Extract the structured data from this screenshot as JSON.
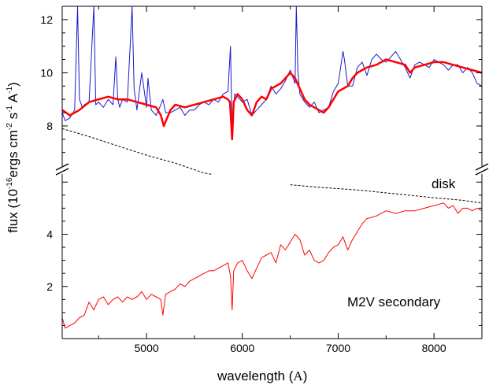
{
  "chart_data": {
    "type": "line",
    "xlabel": "wavelength",
    "xlabel_unit": "A",
    "ylabel": {
      "prefix": "flux (10",
      "exp1": "-16",
      "mid": "ergs cm",
      "exp2": "-2",
      "mid2": " s",
      "exp3": "-1",
      "mid3": " A",
      "exp4": "-1",
      "suffix": ")"
    },
    "xlim": [
      4120,
      8500
    ],
    "x_ticks": [
      5000,
      6000,
      7000,
      8000
    ],
    "upper_panel": {
      "ylim": [
        6.4,
        12.5
      ],
      "y_ticks": [
        8,
        10,
        12
      ]
    },
    "lower_panel": {
      "ylim": [
        0,
        6.4
      ],
      "y_ticks": [
        2,
        4
      ]
    },
    "annotations": {
      "disk": "disk",
      "secondary": "M2V secondary"
    },
    "colors": {
      "observed": "#1a1acc",
      "model": "#ff0000",
      "secondary": "#ff0000",
      "disk": "#000000"
    },
    "series": [
      {
        "panel": "upper",
        "style": "thin",
        "x": [
          4120,
          4150,
          4200,
          4250,
          4280,
          4300,
          4330,
          4350,
          4400,
          4450,
          4470,
          4500,
          4550,
          4600,
          4650,
          4680,
          4700,
          4720,
          4750,
          4800,
          4850,
          4870,
          4900,
          4950,
          5000,
          5015,
          5050,
          5100,
          5150,
          5170,
          5200,
          5250,
          5300,
          5350,
          5400,
          5450,
          5500,
          5550,
          5600,
          5650,
          5700,
          5750,
          5800,
          5850,
          5876,
          5893,
          5920,
          5950,
          6000,
          6050,
          6100,
          6150,
          6200,
          6250,
          6300,
          6350,
          6400,
          6450,
          6500,
          6550,
          6563,
          6580,
          6600,
          6650,
          6700,
          6750,
          6800,
          6850,
          6900,
          6950,
          7000,
          7050,
          7065,
          7100,
          7150,
          7200,
          7250,
          7300,
          7350,
          7400,
          7450,
          7500,
          7550,
          7600,
          7650,
          7700,
          7750,
          7800,
          7850,
          7900,
          7950,
          8000,
          8050,
          8100,
          8150,
          8200,
          8250,
          8300,
          8350,
          8400,
          8450,
          8500
        ],
        "y": [
          8.5,
          8.2,
          8.3,
          8.6,
          12.5,
          9.0,
          8.7,
          8.8,
          8.9,
          12.5,
          8.8,
          8.9,
          8.7,
          9.0,
          8.8,
          10.6,
          9.0,
          8.7,
          9.0,
          8.9,
          12.5,
          9.4,
          8.6,
          10.0,
          8.7,
          9.8,
          8.6,
          8.4,
          8.8,
          9.0,
          8.5,
          8.5,
          8.6,
          8.7,
          8.4,
          8.6,
          8.6,
          8.8,
          8.9,
          8.8,
          9.0,
          8.9,
          9.2,
          9.3,
          11.0,
          7.6,
          9.2,
          9.1,
          8.9,
          9.0,
          8.4,
          8.6,
          8.8,
          9.0,
          9.5,
          9.2,
          9.4,
          9.7,
          10.1,
          9.6,
          12.5,
          10.0,
          9.2,
          8.9,
          8.7,
          8.9,
          8.5,
          8.6,
          8.7,
          9.3,
          9.6,
          10.8,
          10.5,
          9.5,
          9.5,
          10.2,
          10.4,
          9.9,
          10.5,
          10.7,
          10.5,
          10.4,
          10.6,
          10.8,
          10.5,
          10.2,
          9.8,
          10.3,
          10.4,
          10.3,
          10.2,
          10.5,
          10.4,
          10.3,
          10.1,
          10.3,
          10.3,
          10.0,
          10.2,
          10.0,
          9.6,
          9.5
        ]
      },
      {
        "panel": "upper",
        "style": "thick",
        "x": [
          4120,
          4200,
          4300,
          4400,
          4500,
          4600,
          4700,
          4800,
          4900,
          5000,
          5100,
          5150,
          5180,
          5250,
          5300,
          5400,
          5500,
          5600,
          5700,
          5800,
          5850,
          5870,
          5893,
          5910,
          5950,
          6000,
          6050,
          6100,
          6150,
          6200,
          6250,
          6300,
          6350,
          6400,
          6450,
          6500,
          6550,
          6600,
          6650,
          6700,
          6750,
          6800,
          6850,
          6900,
          6950,
          7000,
          7050,
          7100,
          7150,
          7200,
          7300,
          7400,
          7500,
          7600,
          7700,
          7750,
          7800,
          7900,
          8000,
          8100,
          8200,
          8300,
          8400,
          8500
        ],
        "y": [
          8.6,
          8.4,
          8.6,
          8.9,
          9.0,
          9.1,
          9.0,
          9.0,
          8.9,
          8.8,
          8.7,
          8.4,
          8.0,
          8.6,
          8.8,
          8.7,
          8.8,
          8.9,
          9.0,
          9.1,
          9.0,
          8.9,
          7.5,
          8.9,
          9.2,
          9.0,
          8.6,
          8.4,
          8.9,
          9.1,
          9.0,
          9.4,
          9.5,
          9.6,
          9.8,
          10.0,
          9.8,
          9.4,
          9.0,
          8.8,
          8.7,
          8.6,
          8.5,
          8.7,
          9.0,
          9.3,
          9.4,
          9.5,
          9.8,
          10.0,
          10.2,
          10.3,
          10.5,
          10.4,
          10.3,
          10.0,
          10.2,
          10.3,
          10.4,
          10.4,
          10.3,
          10.2,
          10.1,
          10.0
        ]
      },
      {
        "panel": "lower",
        "style": "thin",
        "x": [
          4120,
          4150,
          4200,
          4250,
          4300,
          4350,
          4400,
          4450,
          4500,
          4550,
          4600,
          4650,
          4700,
          4750,
          4800,
          4850,
          4900,
          4950,
          5000,
          5050,
          5100,
          5150,
          5170,
          5200,
          5250,
          5300,
          5350,
          5400,
          5450,
          5500,
          5550,
          5600,
          5650,
          5700,
          5750,
          5800,
          5850,
          5876,
          5893,
          5910,
          5950,
          6000,
          6050,
          6100,
          6150,
          6200,
          6250,
          6300,
          6350,
          6400,
          6450,
          6500,
          6550,
          6600,
          6650,
          6700,
          6750,
          6800,
          6850,
          6900,
          6950,
          7000,
          7050,
          7100,
          7150,
          7200,
          7250,
          7300,
          7400,
          7500,
          7600,
          7700,
          7800,
          7900,
          8000,
          8100,
          8150,
          8200,
          8250,
          8300,
          8350,
          8400,
          8450,
          8500
        ],
        "y": [
          0.8,
          0.4,
          0.5,
          0.6,
          0.8,
          0.9,
          1.4,
          1.1,
          1.5,
          1.6,
          1.3,
          1.5,
          1.6,
          1.4,
          1.6,
          1.5,
          1.6,
          1.8,
          1.5,
          1.7,
          1.6,
          1.5,
          0.9,
          1.7,
          1.8,
          1.9,
          2.1,
          2.0,
          2.2,
          2.3,
          2.4,
          2.5,
          2.6,
          2.6,
          2.7,
          2.8,
          2.9,
          2.4,
          1.1,
          2.6,
          2.9,
          3.0,
          2.6,
          2.3,
          2.7,
          3.1,
          3.2,
          3.3,
          2.9,
          3.6,
          3.4,
          3.7,
          4.0,
          3.8,
          3.2,
          3.4,
          3.0,
          2.9,
          3.0,
          3.3,
          3.5,
          3.6,
          3.9,
          3.4,
          3.8,
          4.1,
          4.4,
          4.6,
          4.7,
          4.9,
          4.8,
          4.9,
          4.9,
          5.0,
          5.1,
          5.2,
          5.0,
          5.1,
          4.8,
          5.0,
          5.0,
          4.9,
          5.0,
          4.9
        ]
      },
      {
        "panel": "split",
        "style": "dashed",
        "segments": [
          {
            "x": [
              4120,
              4400,
              4700,
              5000,
              5300,
              5600,
              5680
            ],
            "y": [
              7.9,
              7.6,
              7.25,
              6.9,
              6.6,
              6.35,
              6.3
            ]
          },
          {
            "x": [
              6500,
              6800,
              7200,
              7600,
              8000,
              8300,
              8500
            ],
            "y": [
              5.9,
              5.8,
              5.7,
              5.55,
              5.4,
              5.3,
              5.2
            ]
          }
        ]
      }
    ]
  }
}
